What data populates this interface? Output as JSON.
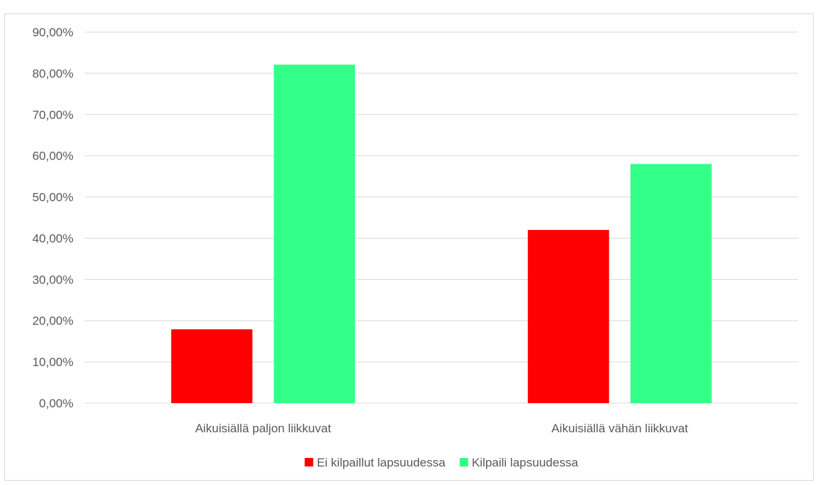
{
  "chart_data": {
    "type": "bar",
    "categories": [
      "Aikuisiällä paljon liikkuvat",
      "Aikuisiällä vähän liikkuvat"
    ],
    "series": [
      {
        "name": "Ei kilpaillut lapsuudessa",
        "color": "#ff0000",
        "values": [
          17.9,
          42.0
        ]
      },
      {
        "name": "Kilpaili lapsuudessa",
        "color": "#33ff88",
        "values": [
          82.1,
          58.0
        ]
      }
    ],
    "y_ticks": [
      "0,00%",
      "10,00%",
      "20,00%",
      "30,00%",
      "40,00%",
      "50,00%",
      "60,00%",
      "70,00%",
      "80,00%",
      "90,00%"
    ],
    "ylim": [
      0,
      90
    ],
    "y_unit": "%",
    "grid": true,
    "legend_position": "bottom",
    "gridline_color": "#d9d9d9"
  }
}
